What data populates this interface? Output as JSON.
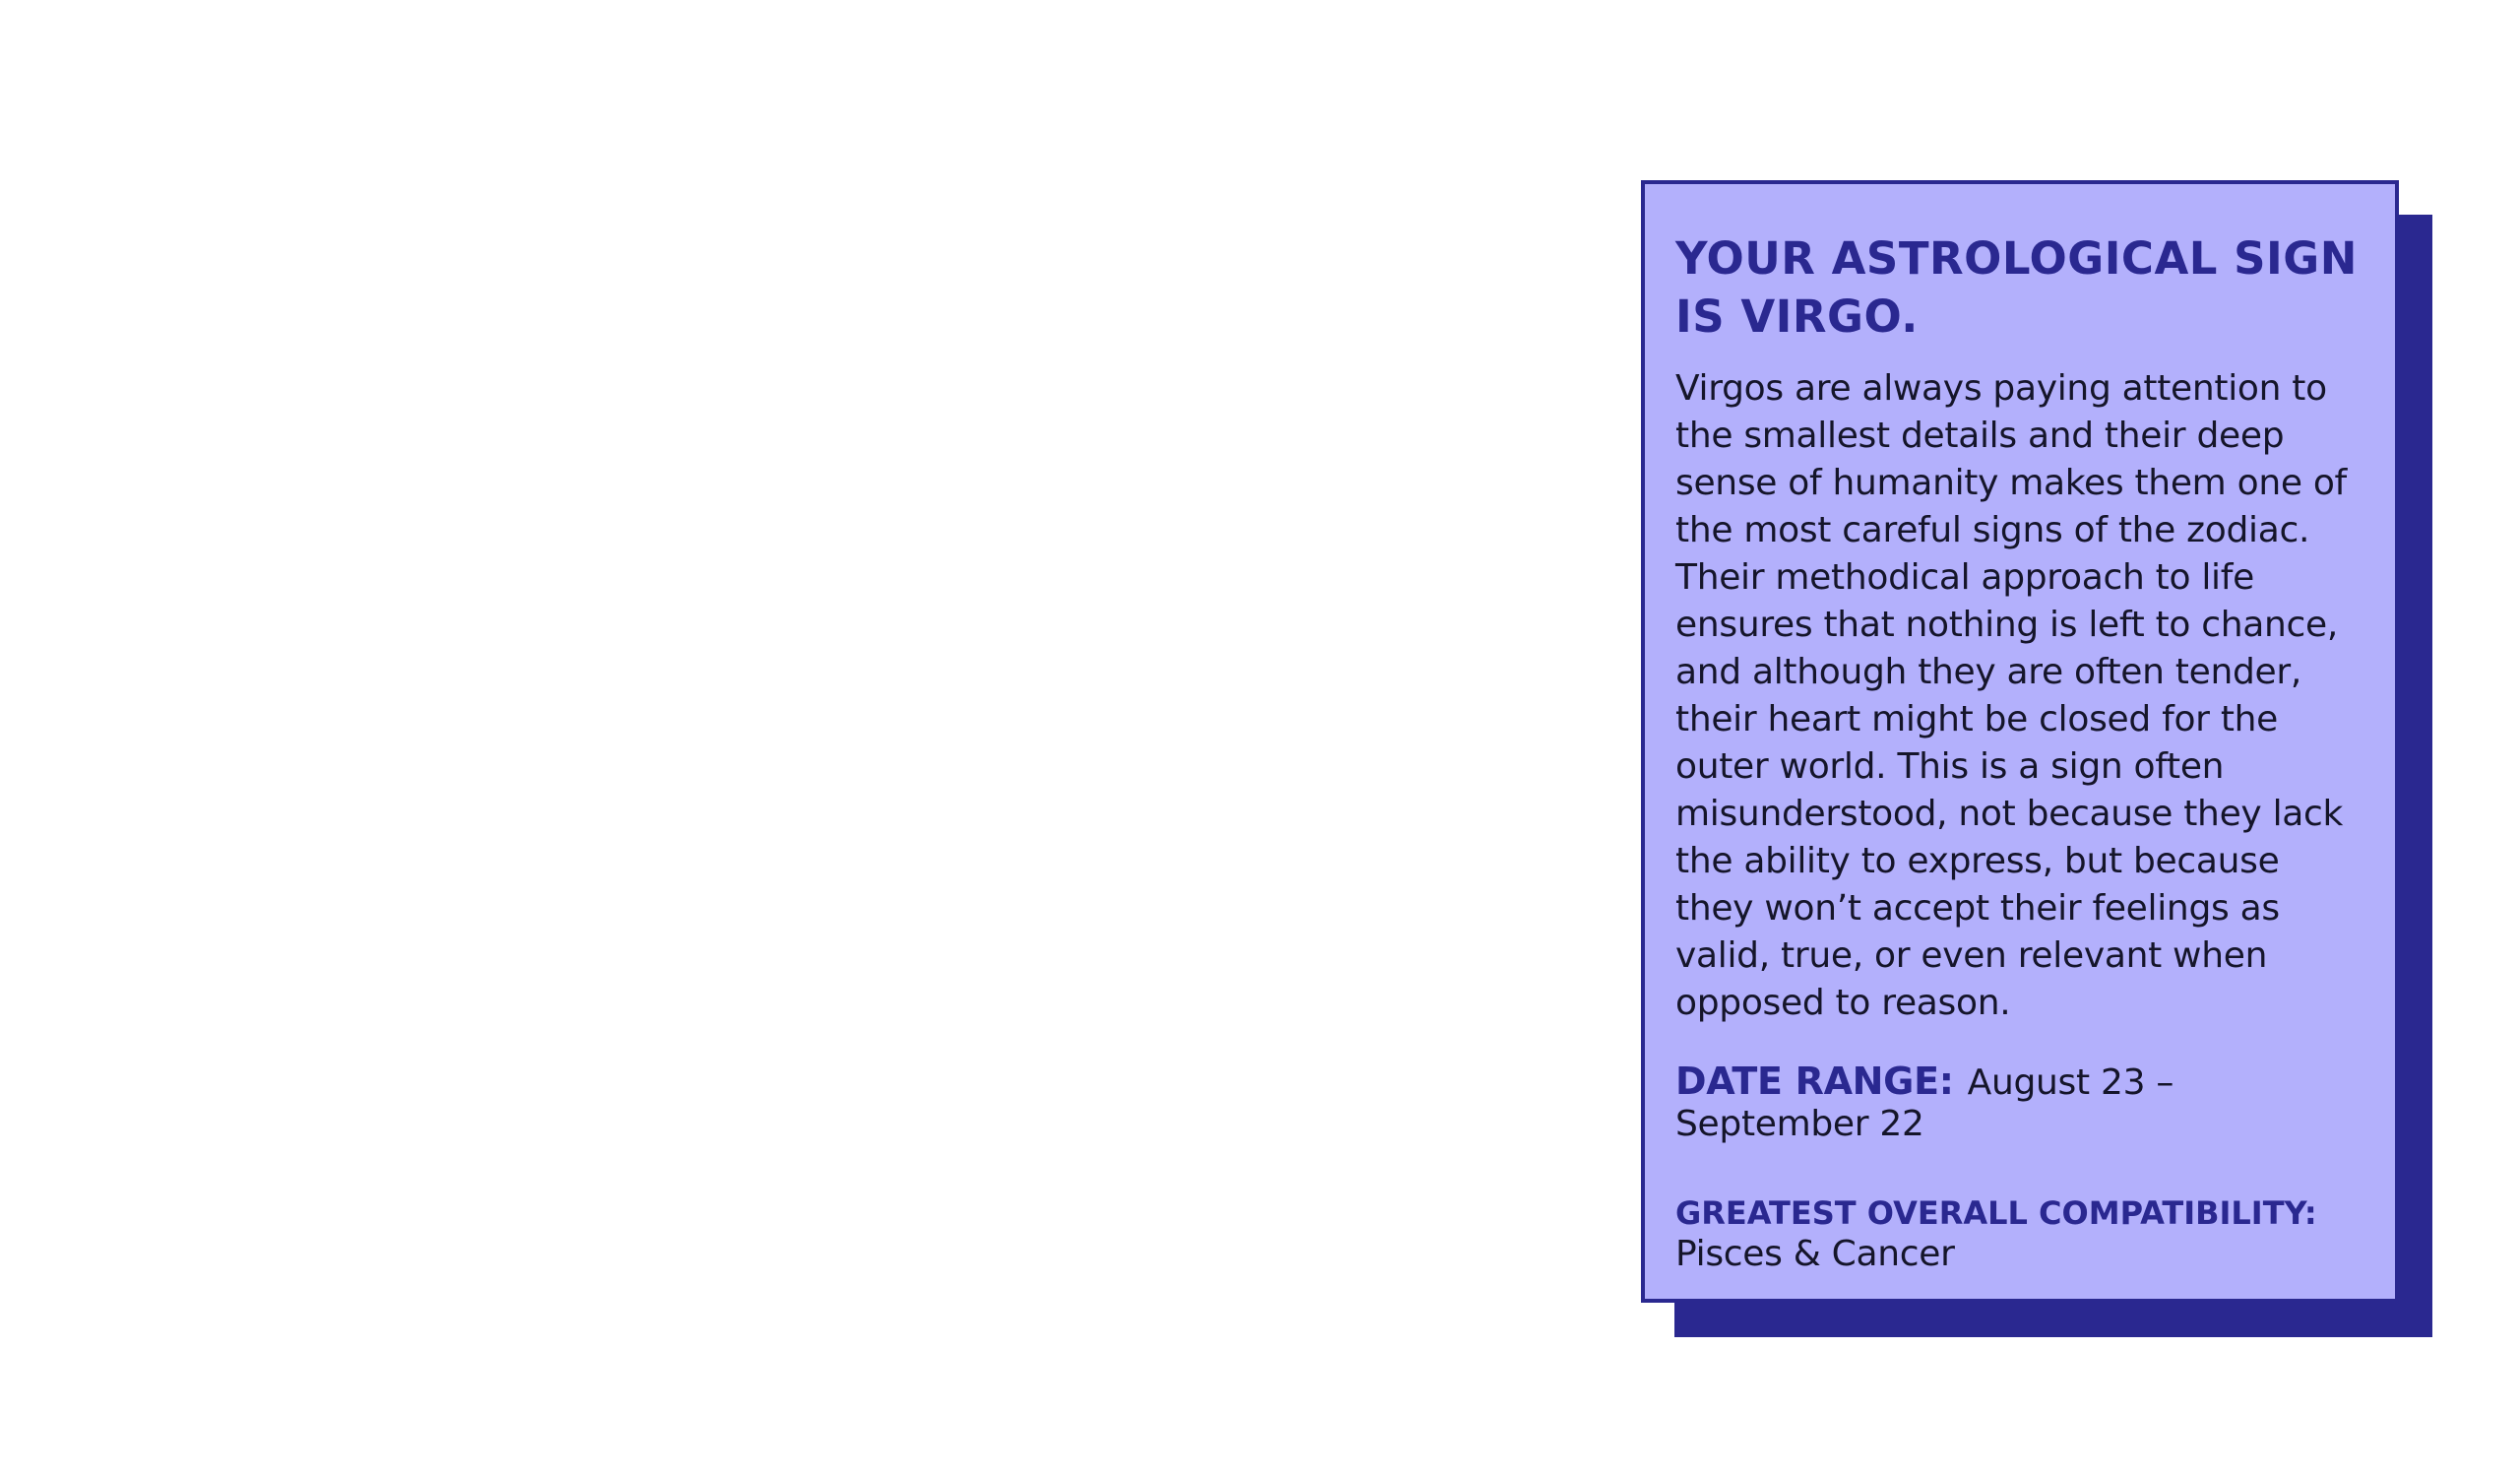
{
  "card": {
    "title": "Your Astrological Sign is Virgo.",
    "description": "Virgos are always paying attention to the smallest details and their deep sense of humanity makes them one of the most careful signs of the zodiac. Their methodical approach to life ensures that nothing is left to chance, and although they are often tender, their heart might be closed for the outer world. This is a sign often misunderstood, not because they lack the ability to express, but because they won’t accept their feelings as valid, true, or even relevant when opposed to reason.",
    "date_range_label": "Date Range:",
    "date_range_value": "August 23 – September 22",
    "compatibility_label": "Greatest Overall Compatibility:",
    "compatibility_value": "Pisces & Cancer"
  },
  "colors": {
    "card_background": "#b3b0fc",
    "accent": "#2a2890",
    "text": "#15152a",
    "page_background": "#ffffff"
  }
}
